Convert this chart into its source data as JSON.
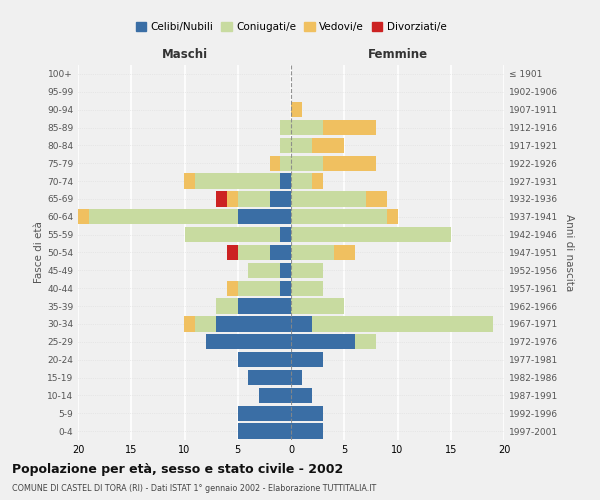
{
  "age_groups": [
    "0-4",
    "5-9",
    "10-14",
    "15-19",
    "20-24",
    "25-29",
    "30-34",
    "35-39",
    "40-44",
    "45-49",
    "50-54",
    "55-59",
    "60-64",
    "65-69",
    "70-74",
    "75-79",
    "80-84",
    "85-89",
    "90-94",
    "95-99",
    "100+"
  ],
  "birth_years": [
    "1997-2001",
    "1992-1996",
    "1987-1991",
    "1982-1986",
    "1977-1981",
    "1972-1976",
    "1967-1971",
    "1962-1966",
    "1957-1961",
    "1952-1956",
    "1947-1951",
    "1942-1946",
    "1937-1941",
    "1932-1936",
    "1927-1931",
    "1922-1926",
    "1917-1921",
    "1912-1916",
    "1907-1911",
    "1902-1906",
    "≤ 1901"
  ],
  "male": {
    "celibi": [
      5,
      5,
      3,
      4,
      5,
      8,
      7,
      5,
      1,
      1,
      2,
      1,
      5,
      2,
      1,
      0,
      0,
      0,
      0,
      0,
      0
    ],
    "coniugati": [
      0,
      0,
      0,
      0,
      0,
      0,
      2,
      2,
      4,
      3,
      3,
      9,
      14,
      3,
      8,
      1,
      1,
      1,
      0,
      0,
      0
    ],
    "vedovi": [
      0,
      0,
      0,
      0,
      0,
      0,
      1,
      0,
      1,
      0,
      0,
      0,
      1,
      1,
      1,
      1,
      0,
      0,
      0,
      0,
      0
    ],
    "divorziati": [
      0,
      0,
      0,
      0,
      0,
      0,
      0,
      0,
      0,
      0,
      1,
      0,
      0,
      1,
      0,
      0,
      0,
      0,
      0,
      0,
      0
    ]
  },
  "female": {
    "nubili": [
      3,
      3,
      2,
      1,
      3,
      6,
      2,
      0,
      0,
      0,
      0,
      0,
      0,
      0,
      0,
      0,
      0,
      0,
      0,
      0,
      0
    ],
    "coniugate": [
      0,
      0,
      0,
      0,
      0,
      2,
      17,
      5,
      3,
      3,
      4,
      15,
      9,
      7,
      2,
      3,
      2,
      3,
      0,
      0,
      0
    ],
    "vedove": [
      0,
      0,
      0,
      0,
      0,
      0,
      0,
      0,
      0,
      0,
      2,
      0,
      1,
      2,
      1,
      5,
      3,
      5,
      1,
      0,
      0
    ],
    "divorziate": [
      0,
      0,
      0,
      0,
      0,
      0,
      0,
      0,
      0,
      0,
      0,
      0,
      0,
      0,
      0,
      0,
      0,
      0,
      0,
      0,
      0
    ]
  },
  "colors": {
    "celibi_nubili": "#3a6ea5",
    "coniugati": "#c8dba0",
    "vedovi": "#f0c060",
    "divorziati": "#cc2222"
  },
  "title": "Popolazione per età, sesso e stato civile - 2002",
  "subtitle": "COMUNE DI CASTEL DI TORA (RI) - Dati ISTAT 1° gennaio 2002 - Elaborazione TUTTITALIA.IT",
  "xlabel_left": "Maschi",
  "xlabel_right": "Femmine",
  "ylabel_left": "Fasce di età",
  "ylabel_right": "Anni di nascita",
  "xlim": 20,
  "background_color": "#f0f0f0",
  "legend_labels": [
    "Celibi/Nubili",
    "Coniugati/e",
    "Vedovi/e",
    "Divorziati/e"
  ]
}
